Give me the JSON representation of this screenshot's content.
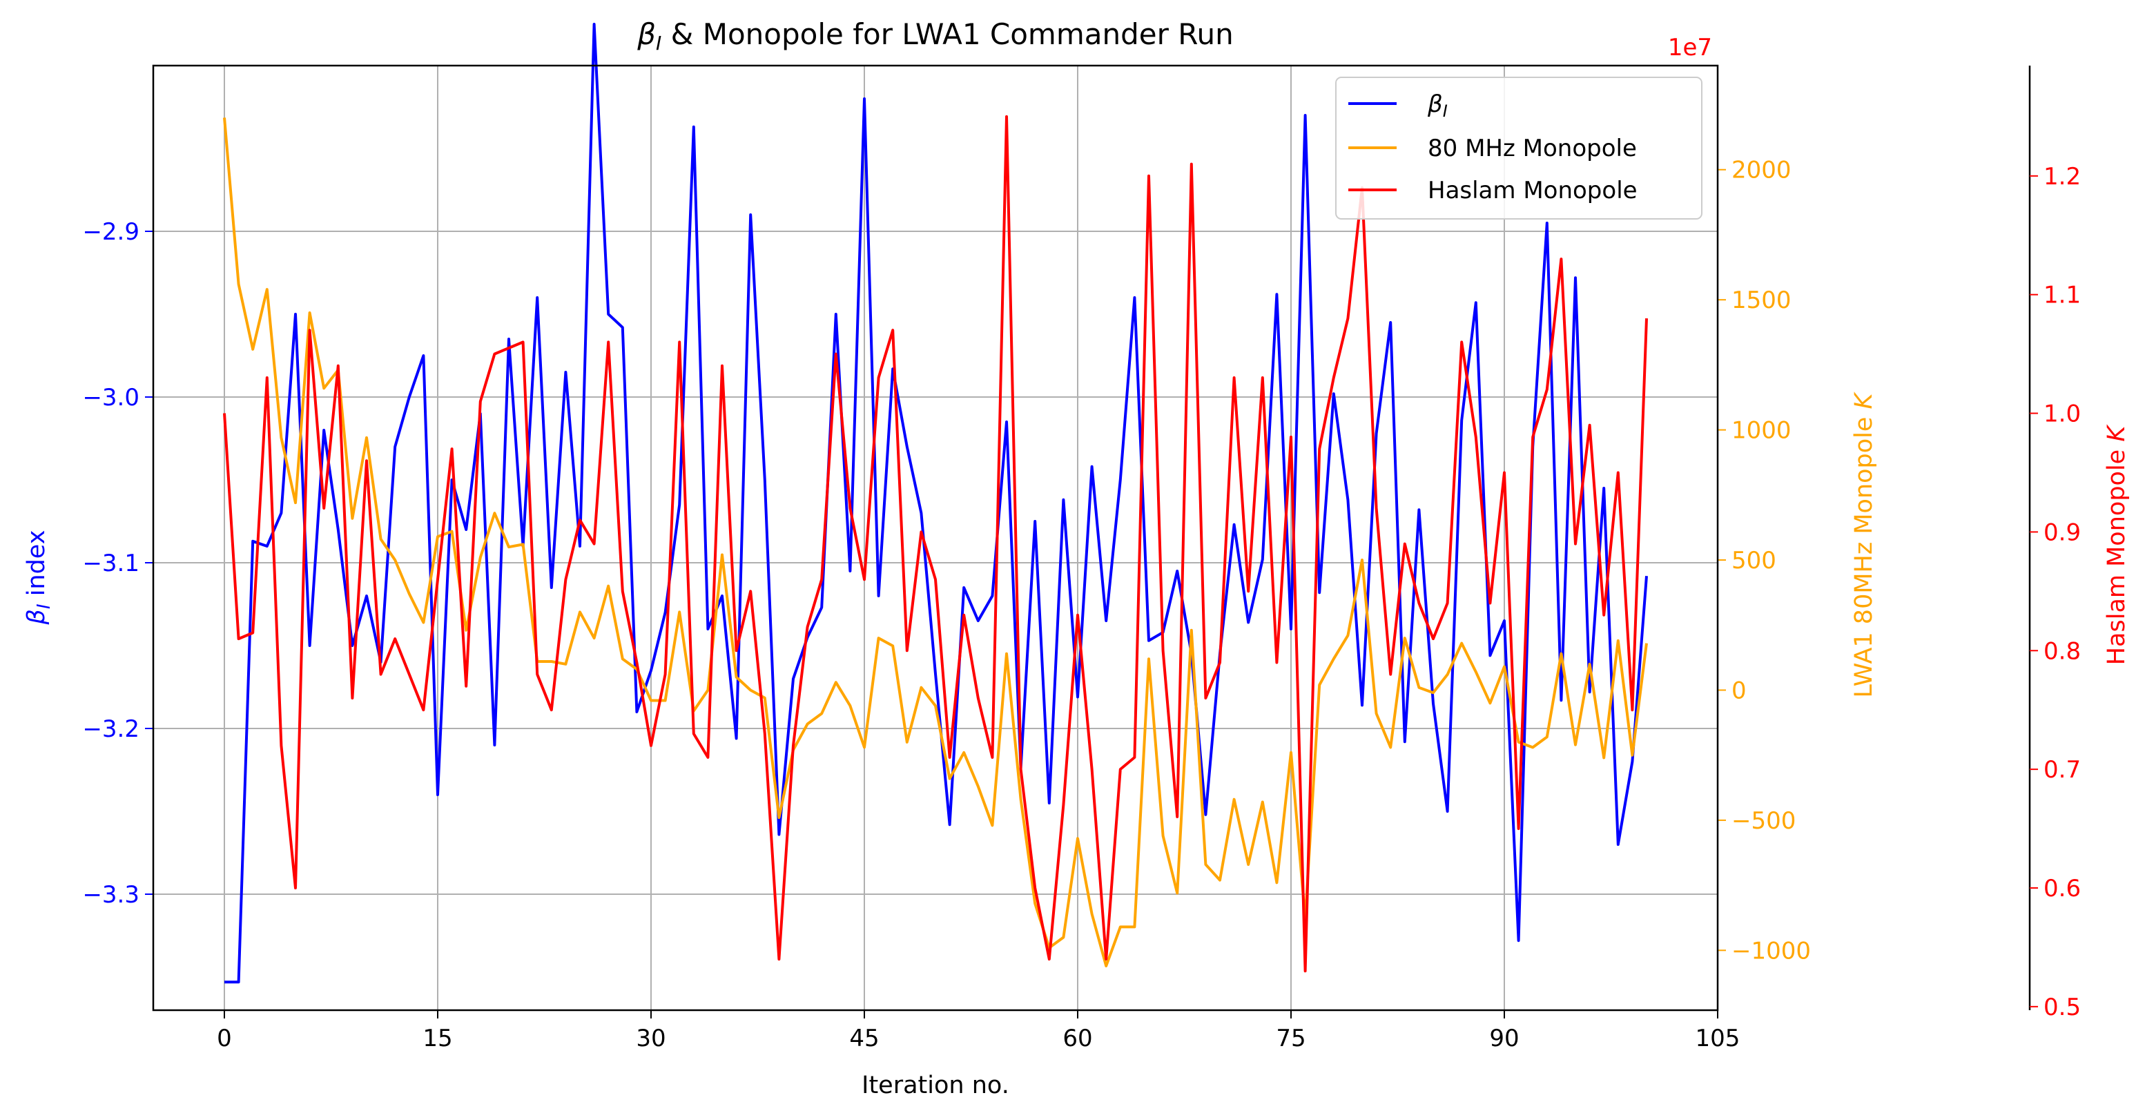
{
  "chart_data": {
    "type": "line",
    "title": "β_I & Monopole for LWA1 Commander Run",
    "title_parts": {
      "beta": "β",
      "sub": "I",
      "rest": " & Monopole for LWA1 Commander Run"
    },
    "xlabel": "Iteration no.",
    "xlim": [
      -5,
      105
    ],
    "x_ticks": [
      0,
      15,
      30,
      45,
      60,
      75,
      90,
      105
    ],
    "grid": true,
    "legend_position": "top-right",
    "axes": {
      "left": {
        "label": "β_I index",
        "label_parts": {
          "beta": "β",
          "sub": "I",
          "rest": " index"
        },
        "color": "#0000ff",
        "ylim": [
          -3.37,
          -2.8
        ],
        "ticks": [
          -2.9,
          -3.0,
          -3.1,
          -3.2,
          -3.3
        ],
        "tick_labels": [
          "−2.9",
          "−3.0",
          "−3.1",
          "−3.2",
          "−3.3"
        ]
      },
      "right1": {
        "label": "LWA1 80MHz Monopole K",
        "label_parts": {
          "text": "LWA1 80MHz Monopole ",
          "italic": "K"
        },
        "color": "#ffa500",
        "offset_label": "1e7",
        "ylim": [
          -1230,
          2400
        ],
        "ticks": [
          2000,
          1500,
          1000,
          500,
          0,
          -500,
          -1000
        ],
        "tick_labels": [
          "2000",
          "1500",
          "1000",
          "500",
          "0",
          "−500",
          "−1000"
        ]
      },
      "right2": {
        "label": "Haslam Monopole K",
        "label_parts": {
          "text": "Haslam Monopole ",
          "italic": "K"
        },
        "color": "#ff0000",
        "ylim": [
          0.497,
          1.293
        ],
        "ticks": [
          1.2,
          1.1,
          1.0,
          0.9,
          0.8,
          0.7,
          0.6,
          0.5
        ],
        "tick_labels": [
          "1.2",
          "1.1",
          "1.0",
          "0.9",
          "0.8",
          "0.7",
          "0.6",
          "0.5"
        ]
      }
    },
    "legend": [
      {
        "label_parts": {
          "beta": "β",
          "sub": "I"
        },
        "color": "#0000ff"
      },
      {
        "label": "80 MHz Monopole",
        "color": "#ffa500"
      },
      {
        "label": "Haslam Monopole",
        "color": "#ff0000"
      }
    ],
    "series": [
      {
        "name": "β_I",
        "axis": "left",
        "color": "#0000ff",
        "x": [
          0,
          1,
          2,
          3,
          4,
          5,
          6,
          7,
          8,
          9,
          10,
          11,
          12,
          13,
          14,
          15,
          16,
          17,
          18,
          19,
          20,
          21,
          22,
          23,
          24,
          25,
          26,
          27,
          28,
          29,
          30,
          31,
          32,
          33,
          34,
          35,
          36,
          37,
          38,
          39,
          40,
          41,
          42,
          43,
          44,
          45,
          46,
          47,
          48,
          49,
          50,
          51,
          52,
          53,
          54,
          55,
          56,
          57,
          58,
          59,
          60,
          61,
          62,
          63,
          64,
          65,
          66,
          67,
          68,
          69,
          70,
          71,
          72,
          73,
          74,
          75,
          76,
          77,
          78,
          79,
          80,
          81,
          82,
          83,
          84,
          85,
          86,
          87,
          88,
          89,
          90,
          91,
          92,
          93,
          94,
          95,
          96,
          97,
          98,
          99,
          100
        ],
        "values": [
          -3.353,
          -3.353,
          -3.087,
          -3.09,
          -3.07,
          -2.95,
          -3.15,
          -3.02,
          -3.08,
          -3.15,
          -3.12,
          -3.16,
          -3.03,
          -3.0,
          -2.975,
          -3.24,
          -3.05,
          -3.08,
          -3.01,
          -3.21,
          -2.965,
          -3.09,
          -2.94,
          -3.115,
          -2.985,
          -3.09,
          -2.775,
          -2.95,
          -2.958,
          -3.19,
          -3.165,
          -3.13,
          -3.065,
          -2.837,
          -3.14,
          -3.12,
          -3.206,
          -2.89,
          -3.05,
          -3.264,
          -3.17,
          -3.145,
          -3.127,
          -2.95,
          -3.105,
          -2.82,
          -3.12,
          -2.983,
          -3.03,
          -3.07,
          -3.167,
          -3.258,
          -3.115,
          -3.135,
          -3.12,
          -3.015,
          -3.224,
          -3.075,
          -3.245,
          -3.062,
          -3.181,
          -3.042,
          -3.135,
          -3.05,
          -2.94,
          -3.147,
          -3.142,
          -3.105,
          -3.155,
          -3.252,
          -3.155,
          -3.077,
          -3.136,
          -3.098,
          -2.938,
          -3.14,
          -2.83,
          -3.118,
          -2.998,
          -3.062,
          -3.186,
          -3.022,
          -2.955,
          -3.208,
          -3.068,
          -3.185,
          -3.25,
          -3.014,
          -2.943,
          -3.156,
          -3.135,
          -3.328,
          -3.03,
          -2.895,
          -3.183,
          -2.928,
          -3.178,
          -3.055,
          -3.27,
          -3.22,
          -3.108
        ]
      },
      {
        "name": "80 MHz Monopole",
        "axis": "right1",
        "color": "#ffa500",
        "x": [
          0,
          1,
          2,
          3,
          4,
          5,
          6,
          7,
          8,
          9,
          10,
          11,
          12,
          13,
          14,
          15,
          16,
          17,
          18,
          19,
          20,
          21,
          22,
          23,
          24,
          25,
          26,
          27,
          28,
          29,
          30,
          31,
          32,
          33,
          34,
          35,
          36,
          37,
          38,
          39,
          40,
          41,
          42,
          43,
          44,
          45,
          46,
          47,
          48,
          49,
          50,
          51,
          52,
          53,
          54,
          55,
          56,
          57,
          58,
          59,
          60,
          61,
          62,
          63,
          64,
          65,
          66,
          67,
          68,
          69,
          70,
          71,
          72,
          73,
          74,
          75,
          76,
          77,
          78,
          79,
          80,
          81,
          82,
          83,
          84,
          85,
          86,
          87,
          88,
          89,
          90,
          91,
          92,
          93,
          94,
          95,
          96,
          97,
          98,
          99,
          100
        ],
        "values": [
          2200,
          1560,
          1310,
          1540,
          970,
          720,
          1450,
          1160,
          1230,
          660,
          970,
          580,
          500,
          370,
          260,
          590,
          610,
          230,
          510,
          680,
          550,
          560,
          110,
          110,
          100,
          300,
          200,
          400,
          120,
          80,
          -40,
          -40,
          300,
          -80,
          0,
          520,
          50,
          0,
          -30,
          -490,
          -230,
          -130,
          -90,
          30,
          -60,
          -220,
          200,
          170,
          -200,
          10,
          -60,
          -340,
          -240,
          -370,
          -520,
          140,
          -420,
          -820,
          -990,
          -950,
          -570,
          -860,
          -1060,
          -910,
          -910,
          120,
          -560,
          -780,
          230,
          -670,
          -730,
          -420,
          -670,
          -430,
          -740,
          -240,
          -880,
          20,
          120,
          210,
          500,
          -90,
          -220,
          200,
          10,
          -10,
          60,
          180,
          70,
          -50,
          90,
          -200,
          -220,
          -180,
          140,
          -210,
          100,
          -260,
          190,
          -250,
          180
        ]
      },
      {
        "name": "Haslam Monopole",
        "axis": "right2",
        "color": "#ff0000",
        "x": [
          0,
          1,
          2,
          3,
          4,
          5,
          6,
          7,
          8,
          9,
          10,
          11,
          12,
          13,
          14,
          15,
          16,
          17,
          18,
          19,
          20,
          21,
          22,
          23,
          24,
          25,
          26,
          27,
          28,
          29,
          30,
          31,
          32,
          33,
          34,
          35,
          36,
          37,
          38,
          39,
          40,
          41,
          42,
          43,
          44,
          45,
          46,
          47,
          48,
          49,
          50,
          51,
          52,
          53,
          54,
          55,
          56,
          57,
          58,
          59,
          60,
          61,
          62,
          63,
          64,
          65,
          66,
          67,
          68,
          69,
          70,
          71,
          72,
          73,
          74,
          75,
          76,
          77,
          78,
          79,
          80,
          81,
          82,
          83,
          84,
          85,
          86,
          87,
          88,
          89,
          90,
          91,
          92,
          93,
          94,
          95,
          96,
          97,
          98,
          99,
          100
        ],
        "values": [
          1.0,
          0.81,
          0.815,
          1.03,
          0.72,
          0.6,
          1.07,
          0.92,
          1.04,
          0.76,
          0.96,
          0.78,
          0.81,
          0.78,
          0.75,
          0.86,
          0.97,
          0.77,
          1.01,
          1.05,
          1.055,
          1.06,
          0.78,
          0.75,
          0.86,
          0.91,
          0.89,
          1.06,
          0.85,
          0.79,
          0.72,
          0.78,
          1.06,
          0.73,
          0.71,
          1.04,
          0.8,
          0.85,
          0.73,
          0.54,
          0.72,
          0.82,
          0.86,
          1.05,
          0.92,
          0.86,
          1.03,
          1.07,
          0.8,
          0.9,
          0.86,
          0.71,
          0.83,
          0.76,
          0.71,
          1.25,
          0.7,
          0.6,
          0.54,
          0.67,
          0.83,
          0.7,
          0.54,
          0.7,
          0.71,
          1.2,
          0.8,
          0.66,
          1.21,
          0.76,
          0.79,
          1.03,
          0.85,
          1.03,
          0.79,
          0.98,
          0.53,
          0.97,
          1.03,
          1.08,
          1.19,
          0.92,
          0.78,
          0.89,
          0.84,
          0.81,
          0.84,
          1.06,
          0.98,
          0.84,
          0.95,
          0.65,
          0.98,
          1.02,
          1.13,
          0.89,
          0.99,
          0.83,
          0.95,
          0.75,
          1.08
        ]
      }
    ]
  }
}
